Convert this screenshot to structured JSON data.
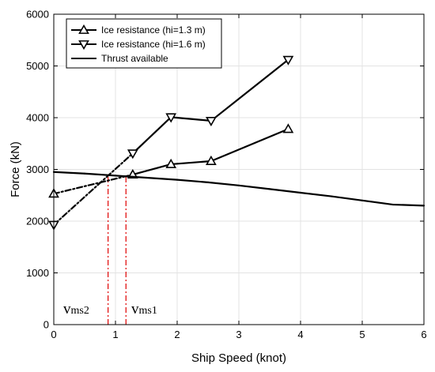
{
  "chart_data": {
    "type": "line",
    "xlabel": "Ship Speed (knot)",
    "ylabel": "Force (kN)",
    "xlim": [
      0,
      6
    ],
    "ylim": [
      0,
      6000
    ],
    "xticks": [
      "0",
      "1",
      "2",
      "3",
      "4",
      "5",
      "6"
    ],
    "yticks": [
      "0",
      "1000",
      "2000",
      "3000",
      "4000",
      "5000",
      "6000"
    ],
    "grid": true,
    "legend_position": "top-left",
    "series": [
      {
        "name": "Ice resistance (hi=1.3 m)",
        "marker": "triangle-up",
        "color": "#000000",
        "x": [
          0,
          1.28,
          1.9,
          2.55,
          3.8
        ],
        "y": [
          2530,
          2900,
          3100,
          3160,
          3780
        ],
        "dashed_segment_count": 1
      },
      {
        "name": "Ice resistance (hi=1.6 m)",
        "marker": "triangle-down",
        "color": "#000000",
        "x": [
          0,
          1.28,
          1.9,
          2.55,
          3.8
        ],
        "y": [
          1930,
          3310,
          4010,
          3940,
          5120
        ],
        "dashed_segment_count": 1
      },
      {
        "name": "Thrust available",
        "marker": "none",
        "color": "#000000",
        "x": [
          0,
          0.5,
          1,
          1.5,
          2,
          2.5,
          3,
          3.5,
          4,
          4.5,
          5,
          5.5,
          6
        ],
        "y": [
          2950,
          2920,
          2880,
          2840,
          2800,
          2750,
          2690,
          2620,
          2550,
          2480,
          2400,
          2320,
          2300
        ]
      }
    ],
    "annotations": [
      {
        "main": "v",
        "sub": "ms2",
        "x": 0.88,
        "y_intersect": 2880,
        "color": "#e00000"
      },
      {
        "main": "v",
        "sub": "ms1",
        "x": 1.17,
        "y_intersect": 2870,
        "color": "#e00000"
      }
    ]
  }
}
